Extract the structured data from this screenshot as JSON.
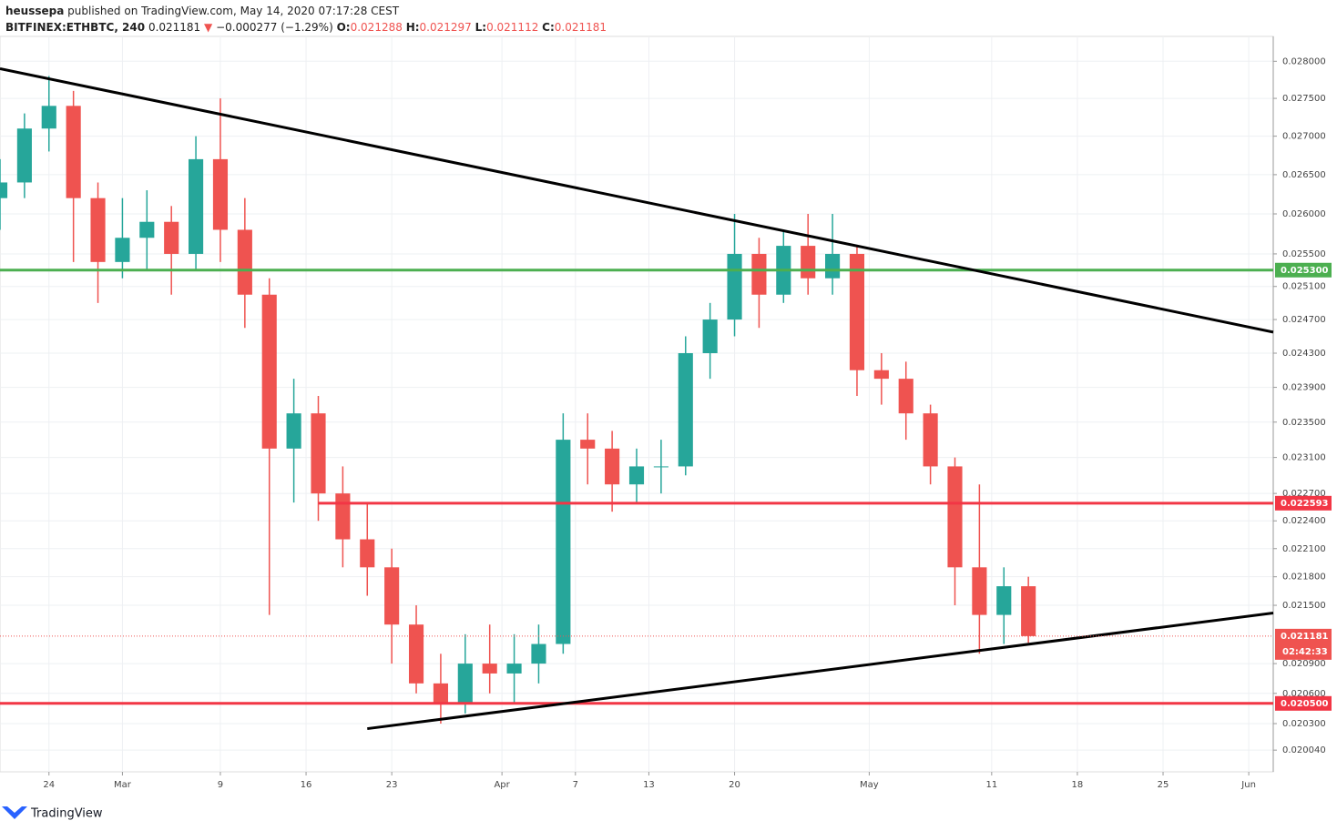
{
  "header": {
    "user": "heussepa",
    "published": "published on TradingView.com, May 14, 2020 07:17:28 CEST",
    "symbol": "BITFINEX:ETHBTC, 240",
    "last": "0.021181",
    "arrow": "▼",
    "change": "−0.000277 (−1.29%)",
    "o_label": "O:",
    "open": "0.021288",
    "h_label": "H:",
    "high": "0.021297",
    "l_label": "L:",
    "low": "0.021112",
    "c_label": "C:",
    "close": "0.021181"
  },
  "footer": {
    "brand": "TradingView"
  },
  "chart_data": {
    "type": "candlestick",
    "log_scale": true,
    "grid": true,
    "up_color": "#26a69a",
    "down_color": "#ef5350",
    "x": [
      "2020-02-20",
      "2020-02-22",
      "2020-02-24",
      "2020-02-26",
      "2020-02-28",
      "2020-03-01",
      "2020-03-03",
      "2020-03-05",
      "2020-03-07",
      "2020-03-09",
      "2020-03-11",
      "2020-03-13",
      "2020-03-15",
      "2020-03-17",
      "2020-03-19",
      "2020-03-21",
      "2020-03-23",
      "2020-03-25",
      "2020-03-27",
      "2020-03-29",
      "2020-03-31",
      "2020-04-02",
      "2020-04-04",
      "2020-04-06",
      "2020-04-08",
      "2020-04-10",
      "2020-04-12",
      "2020-04-14",
      "2020-04-16",
      "2020-04-18",
      "2020-04-20",
      "2020-04-22",
      "2020-04-24",
      "2020-04-26",
      "2020-04-28",
      "2020-04-30",
      "2020-05-02",
      "2020-05-04",
      "2020-05-06",
      "2020-05-08",
      "2020-05-10",
      "2020-05-12",
      "2020-05-14"
    ],
    "open": [
      0.0262,
      0.0264,
      0.0271,
      0.0274,
      0.0262,
      0.0254,
      0.0257,
      0.0259,
      0.0255,
      0.0267,
      0.0258,
      0.025,
      0.0232,
      0.0236,
      0.0227,
      0.0222,
      0.0219,
      0.0213,
      0.0207,
      0.0205,
      0.0209,
      0.0208,
      0.0209,
      0.0211,
      0.0233,
      0.0232,
      0.0228,
      0.023,
      0.023,
      0.0243,
      0.0247,
      0.0255,
      0.025,
      0.0256,
      0.0252,
      0.0255,
      0.0241,
      0.024,
      0.0236,
      0.023,
      0.0219,
      0.0214,
      0.0217
    ],
    "high": [
      0.0267,
      0.0273,
      0.0278,
      0.0276,
      0.0264,
      0.0262,
      0.0263,
      0.0261,
      0.027,
      0.0275,
      0.0262,
      0.0252,
      0.024,
      0.0238,
      0.023,
      0.0226,
      0.0221,
      0.0215,
      0.021,
      0.0212,
      0.0213,
      0.0212,
      0.0213,
      0.0236,
      0.0236,
      0.0234,
      0.0232,
      0.0233,
      0.0245,
      0.0249,
      0.026,
      0.0257,
      0.0258,
      0.026,
      0.026,
      0.0256,
      0.0243,
      0.0242,
      0.0237,
      0.0231,
      0.0228,
      0.0219,
      0.0218
    ],
    "low": [
      0.0258,
      0.0262,
      0.0268,
      0.0254,
      0.0249,
      0.0252,
      0.0253,
      0.025,
      0.0253,
      0.0254,
      0.0246,
      0.0214,
      0.0226,
      0.0224,
      0.0219,
      0.0216,
      0.0209,
      0.0206,
      0.0203,
      0.0204,
      0.0206,
      0.0205,
      0.0207,
      0.021,
      0.0228,
      0.0225,
      0.0226,
      0.0227,
      0.0229,
      0.024,
      0.0245,
      0.0246,
      0.0249,
      0.025,
      0.025,
      0.0238,
      0.0237,
      0.0233,
      0.0228,
      0.0215,
      0.021,
      0.0211,
      0.021112
    ],
    "close": [
      0.0264,
      0.0271,
      0.0274,
      0.0262,
      0.0254,
      0.0257,
      0.0259,
      0.0255,
      0.0267,
      0.0258,
      0.025,
      0.0232,
      0.0236,
      0.0227,
      0.0222,
      0.0219,
      0.0213,
      0.0207,
      0.0205,
      0.0209,
      0.0208,
      0.0209,
      0.0211,
      0.0233,
      0.0232,
      0.0228,
      0.023,
      0.023,
      0.0243,
      0.0247,
      0.0255,
      0.025,
      0.0256,
      0.0252,
      0.0255,
      0.0241,
      0.024,
      0.0236,
      0.023,
      0.0219,
      0.0214,
      0.0217,
      0.021181
    ],
    "xlim": [
      "2020-02-20",
      "2020-06-03"
    ],
    "xticks": [
      {
        "value": "2020-02-24",
        "label": "24"
      },
      {
        "value": "2020-03-01",
        "label": "Mar"
      },
      {
        "value": "2020-03-09",
        "label": "9"
      },
      {
        "value": "2020-03-16",
        "label": "16"
      },
      {
        "value": "2020-03-23",
        "label": "23"
      },
      {
        "value": "2020-04-01",
        "label": "Apr"
      },
      {
        "value": "2020-04-07",
        "label": "7"
      },
      {
        "value": "2020-04-13",
        "label": "13"
      },
      {
        "value": "2020-04-20",
        "label": "20"
      },
      {
        "value": "2020-05-01",
        "label": "May"
      },
      {
        "value": "2020-05-11",
        "label": "11"
      },
      {
        "value": "2020-05-18",
        "label": "18"
      },
      {
        "value": "2020-05-25",
        "label": "25"
      },
      {
        "value": "2020-06-01",
        "label": "Jun"
      }
    ],
    "ylim": [
      0.01983,
      0.02834
    ],
    "yticks": [
      {
        "value": 0.028,
        "label": "0.028000"
      },
      {
        "value": 0.0275,
        "label": "0.027500"
      },
      {
        "value": 0.027,
        "label": "0.027000"
      },
      {
        "value": 0.0265,
        "label": "0.026500"
      },
      {
        "value": 0.026,
        "label": "0.026000"
      },
      {
        "value": 0.0255,
        "label": "0.025500"
      },
      {
        "value": 0.0251,
        "label": "0.025100"
      },
      {
        "value": 0.0247,
        "label": "0.024700"
      },
      {
        "value": 0.0243,
        "label": "0.024300"
      },
      {
        "value": 0.0239,
        "label": "0.023900"
      },
      {
        "value": 0.0235,
        "label": "0.023500"
      },
      {
        "value": 0.0231,
        "label": "0.023100"
      },
      {
        "value": 0.0227,
        "label": "0.022700"
      },
      {
        "value": 0.0224,
        "label": "0.022400"
      },
      {
        "value": 0.0221,
        "label": "0.022100"
      },
      {
        "value": 0.0218,
        "label": "0.021800"
      },
      {
        "value": 0.0215,
        "label": "0.021500"
      },
      {
        "value": 0.0209,
        "label": "0.020900"
      },
      {
        "value": 0.0206,
        "label": "0.020600"
      },
      {
        "value": 0.0203,
        "label": "0.020300"
      },
      {
        "value": 0.02004,
        "label": "0.020040"
      }
    ],
    "levels": [
      {
        "value": 0.0253,
        "label": "0.025300",
        "color": "#4caf50",
        "start": "2020-02-20"
      },
      {
        "value": 0.022593,
        "label": "0.022593",
        "color": "#f23645",
        "start": "2020-03-17"
      },
      {
        "value": 0.0205,
        "label": "0.020500",
        "color": "#f23645",
        "start": "2020-02-20"
      }
    ],
    "last_price": {
      "value": 0.021181,
      "label": "0.021181",
      "color": "#ef5350"
    },
    "countdown": "02:42:33",
    "trendlines": [
      {
        "x": [
          "2020-02-20",
          "2020-06-03"
        ],
        "y": [
          0.0279,
          0.02455
        ],
        "color": "#000000"
      },
      {
        "x": [
          "2020-03-21",
          "2020-06-03"
        ],
        "y": [
          0.02025,
          0.02142
        ],
        "color": "#000000"
      }
    ]
  }
}
